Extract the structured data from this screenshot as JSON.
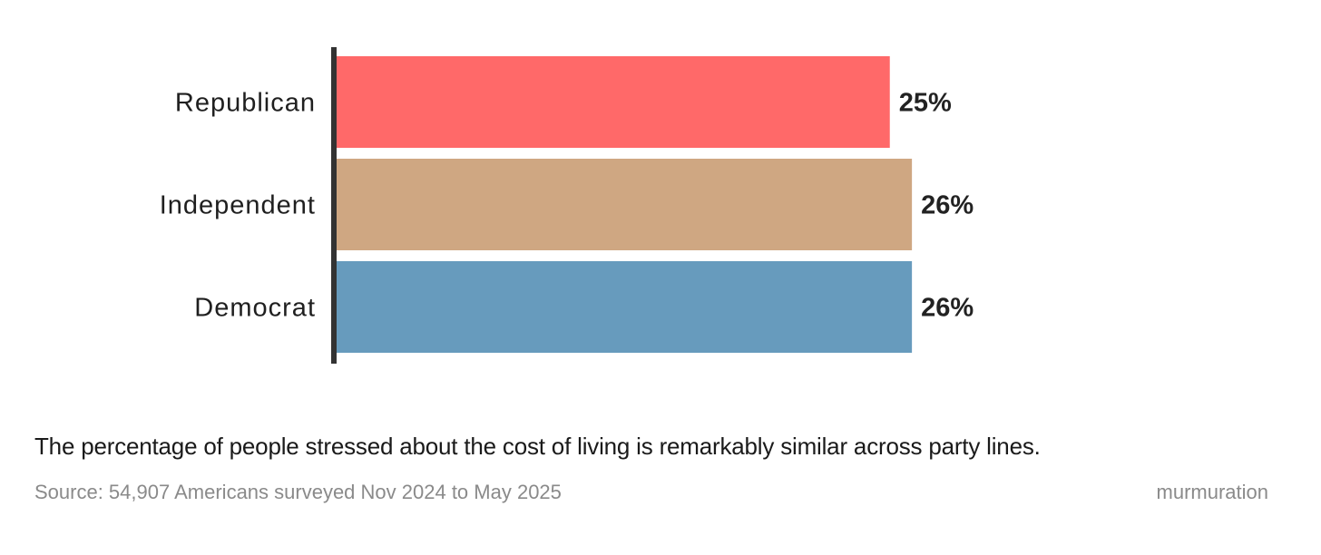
{
  "chart_data": {
    "type": "bar",
    "orientation": "horizontal",
    "categories": [
      "Republican",
      "Independent",
      "Democrat"
    ],
    "values": [
      25,
      26,
      26
    ],
    "value_labels": [
      "25%",
      "26%",
      "26%"
    ],
    "colors": [
      "#ff6969",
      "#cfa782",
      "#679bbd"
    ],
    "unit": "%",
    "xlim": [
      0,
      26.2
    ],
    "title": "",
    "xlabel": "",
    "ylabel": "",
    "grid": false,
    "legend": "none"
  },
  "caption": "The percentage of people stressed about the cost of living is remarkably similar across party lines.",
  "source": "Source: 54,907 Americans surveyed Nov 2024 to May 2025",
  "brand": "murmuration"
}
